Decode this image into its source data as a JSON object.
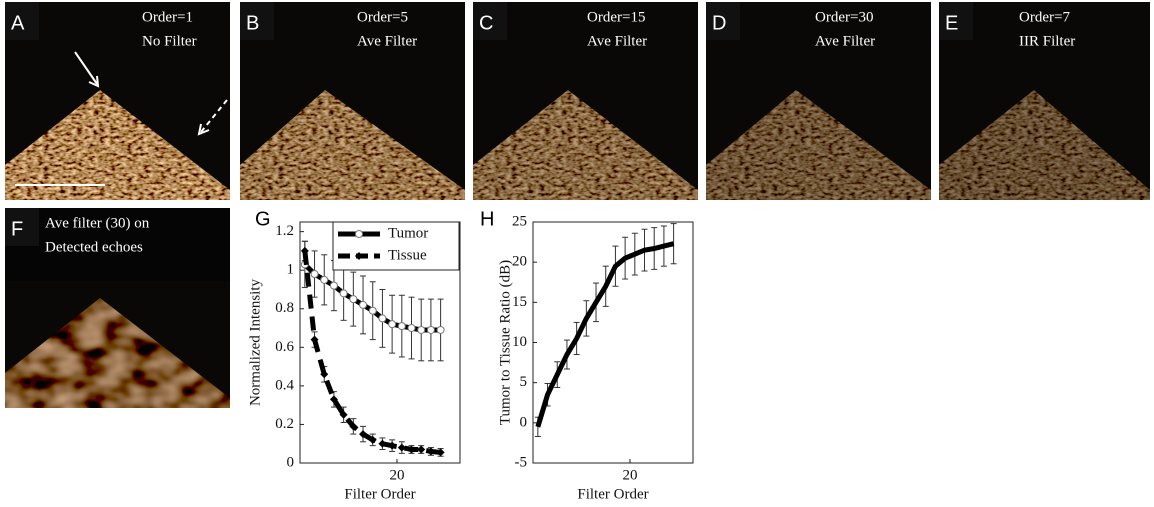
{
  "panels": [
    {
      "letter": "A",
      "lines": [
        "Order=1",
        "No Filter"
      ]
    },
    {
      "letter": "B",
      "lines": [
        "Order=5",
        "Ave Filter"
      ]
    },
    {
      "letter": "C",
      "lines": [
        "Order=15",
        "Ave Filter"
      ]
    },
    {
      "letter": "D",
      "lines": [
        "Order=30",
        "Ave Filter"
      ]
    },
    {
      "letter": "E",
      "lines": [
        "Order=7",
        "IIR Filter"
      ]
    },
    {
      "letter": "F",
      "lines": [
        "Ave filter (30) on",
        "Detected echoes"
      ]
    }
  ],
  "chart_data": [
    {
      "type": "line",
      "panel": "G",
      "xlabel": "Filter Order",
      "ylabel": "Normalized Intensity",
      "x": [
        1,
        3,
        5,
        7,
        9,
        11,
        13,
        15,
        17,
        19,
        21,
        23,
        25,
        27,
        29
      ],
      "series": [
        {
          "name": "Tumor",
          "color": "#000000",
          "marker": "circle",
          "dashed": false,
          "values": [
            1.03,
            0.98,
            0.95,
            0.92,
            0.88,
            0.85,
            0.82,
            0.79,
            0.75,
            0.72,
            0.71,
            0.7,
            0.69,
            0.69,
            0.69
          ],
          "errors": [
            0.12,
            0.12,
            0.13,
            0.13,
            0.14,
            0.14,
            0.15,
            0.15,
            0.15,
            0.15,
            0.16,
            0.16,
            0.16,
            0.16,
            0.16
          ]
        },
        {
          "name": "Tissue",
          "color": "#000000",
          "marker": "diamond",
          "dashed": true,
          "values": [
            1.1,
            0.64,
            0.46,
            0.33,
            0.25,
            0.19,
            0.15,
            0.12,
            0.1,
            0.09,
            0.08,
            0.07,
            0.07,
            0.06,
            0.055
          ],
          "errors": [
            0.05,
            0.04,
            0.04,
            0.04,
            0.04,
            0.04,
            0.04,
            0.03,
            0.03,
            0.03,
            0.03,
            0.02,
            0.02,
            0.02,
            0.02
          ]
        }
      ],
      "xlim": [
        0,
        33
      ],
      "ylim": [
        0,
        1.25
      ],
      "xticks": [
        20
      ],
      "yticks": [
        0,
        0.2,
        0.4,
        0.6,
        0.8,
        1,
        1.2
      ],
      "legend": "top-right"
    },
    {
      "type": "line",
      "panel": "H",
      "xlabel": "Filter Order",
      "ylabel": "Tumor to Tissue Ratio (dB)",
      "x": [
        1,
        3,
        5,
        7,
        9,
        11,
        13,
        15,
        17,
        19,
        21,
        23,
        25,
        27,
        29
      ],
      "series": [
        {
          "color": "#000000",
          "marker": "none",
          "dashed": false,
          "values": [
            -0.5,
            3.5,
            6,
            8.5,
            10.5,
            13,
            15,
            17,
            19.5,
            20.5,
            21,
            21.5,
            21.7,
            22,
            22.3
          ],
          "errors": [
            1.2,
            1.4,
            1.6,
            1.8,
            2,
            2.2,
            2.4,
            2.5,
            2.5,
            2.6,
            2.6,
            2.6,
            2.6,
            2.5,
            2.5
          ]
        }
      ],
      "xlim": [
        0,
        33
      ],
      "ylim": [
        -5,
        25
      ],
      "xticks": [
        20
      ],
      "yticks": [
        -5,
        0,
        5,
        10,
        15,
        20,
        25
      ]
    }
  ]
}
